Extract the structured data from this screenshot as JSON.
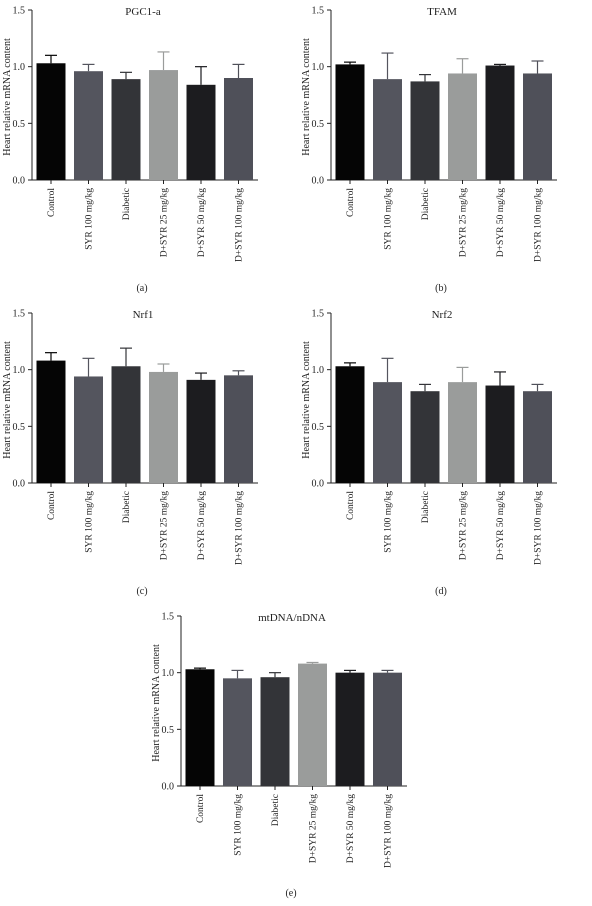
{
  "figure": {
    "categories": [
      "Control",
      "SYR 100 mg/kg",
      "Diabetic",
      "D+SYR 25 mg/kg",
      "D+SYR 50 mg/kg",
      "D+SYR 100 mg/kg"
    ],
    "bar_colors": [
      "#050505",
      "#54555e",
      "#333438",
      "#9a9c9b",
      "#1c1c1f",
      "#4f5059"
    ]
  },
  "chart_data": [
    {
      "type": "bar",
      "panel": "(a)",
      "title": "PGC1-a",
      "ylabel": "Heart relative mRNA content",
      "xlabel": "",
      "categories": [
        "Control",
        "SYR 100 mg/kg",
        "Diabetic",
        "D+SYR 25 mg/kg",
        "D+SYR 50 mg/kg",
        "D+SYR 100 mg/kg"
      ],
      "values": [
        1.03,
        0.96,
        0.89,
        0.97,
        0.84,
        0.9
      ],
      "errors": [
        0.07,
        0.06,
        0.06,
        0.16,
        0.16,
        0.12
      ],
      "ylim": [
        0,
        1.5
      ],
      "yticks": [
        "0.0",
        "0.5",
        "1.0",
        "1.5"
      ],
      "grid": false,
      "legend": "none"
    },
    {
      "type": "bar",
      "panel": "(b)",
      "title": "TFAM",
      "ylabel": "Heart relative mRNA content",
      "xlabel": "",
      "categories": [
        "Control",
        "SYR 100 mg/kg",
        "Diabetic",
        "D+SYR 25 mg/kg",
        "D+SYR 50 mg/kg",
        "D+SYR 100 mg/kg"
      ],
      "values": [
        1.02,
        0.89,
        0.87,
        0.94,
        1.01,
        0.94
      ],
      "errors": [
        0.02,
        0.23,
        0.06,
        0.13,
        0.01,
        0.11
      ],
      "ylim": [
        0,
        1.5
      ],
      "yticks": [
        "0.0",
        "0.5",
        "1.0",
        "1.5"
      ],
      "grid": false,
      "legend": "none"
    },
    {
      "type": "bar",
      "panel": "(c)",
      "title": "Nrf1",
      "ylabel": "Heart relative mRNA content",
      "xlabel": "",
      "categories": [
        "Control",
        "SYR 100 mg/kg",
        "Diabetic",
        "D+SYR 25 mg/kg",
        "D+SYR 50 mg/kg",
        "D+SYR 100 mg/kg"
      ],
      "values": [
        1.08,
        0.94,
        1.03,
        0.98,
        0.91,
        0.95
      ],
      "errors": [
        0.07,
        0.16,
        0.16,
        0.07,
        0.06,
        0.04
      ],
      "ylim": [
        0,
        1.5
      ],
      "yticks": [
        "0.0",
        "0.5",
        "1.0",
        "1.5"
      ],
      "grid": false,
      "legend": "none"
    },
    {
      "type": "bar",
      "panel": "(d)",
      "title": "Nrf2",
      "ylabel": "Heart relative mRNA content",
      "xlabel": "",
      "categories": [
        "Control",
        "SYR 100 mg/kg",
        "Diabetic",
        "D+SYR 25 mg/kg",
        "D+SYR 50 mg/kg",
        "D+SYR 100 mg/kg"
      ],
      "values": [
        1.03,
        0.89,
        0.81,
        0.89,
        0.86,
        0.81
      ],
      "errors": [
        0.03,
        0.21,
        0.06,
        0.13,
        0.12,
        0.06
      ],
      "ylim": [
        0,
        1.5
      ],
      "yticks": [
        "0.0",
        "0.5",
        "1.0",
        "1.5"
      ],
      "grid": false,
      "legend": "none"
    },
    {
      "type": "bar",
      "panel": "(e)",
      "title": "mtDNA/nDNA",
      "ylabel": "Heart relative mRNA content",
      "xlabel": "",
      "categories": [
        "Control",
        "SYR 100 mg/kg",
        "Diabetic",
        "D+SYR 25 mg/kg",
        "D+SYR 50 mg/kg",
        "D+SYR 100 mg/kg"
      ],
      "values": [
        1.03,
        0.95,
        0.96,
        1.08,
        1.0,
        1.0
      ],
      "errors": [
        0.01,
        0.07,
        0.04,
        0.01,
        0.02,
        0.02
      ],
      "ylim": [
        0,
        1.5
      ],
      "yticks": [
        "0.0",
        "0.5",
        "1.0",
        "1.5"
      ],
      "grid": false,
      "legend": "none"
    }
  ]
}
